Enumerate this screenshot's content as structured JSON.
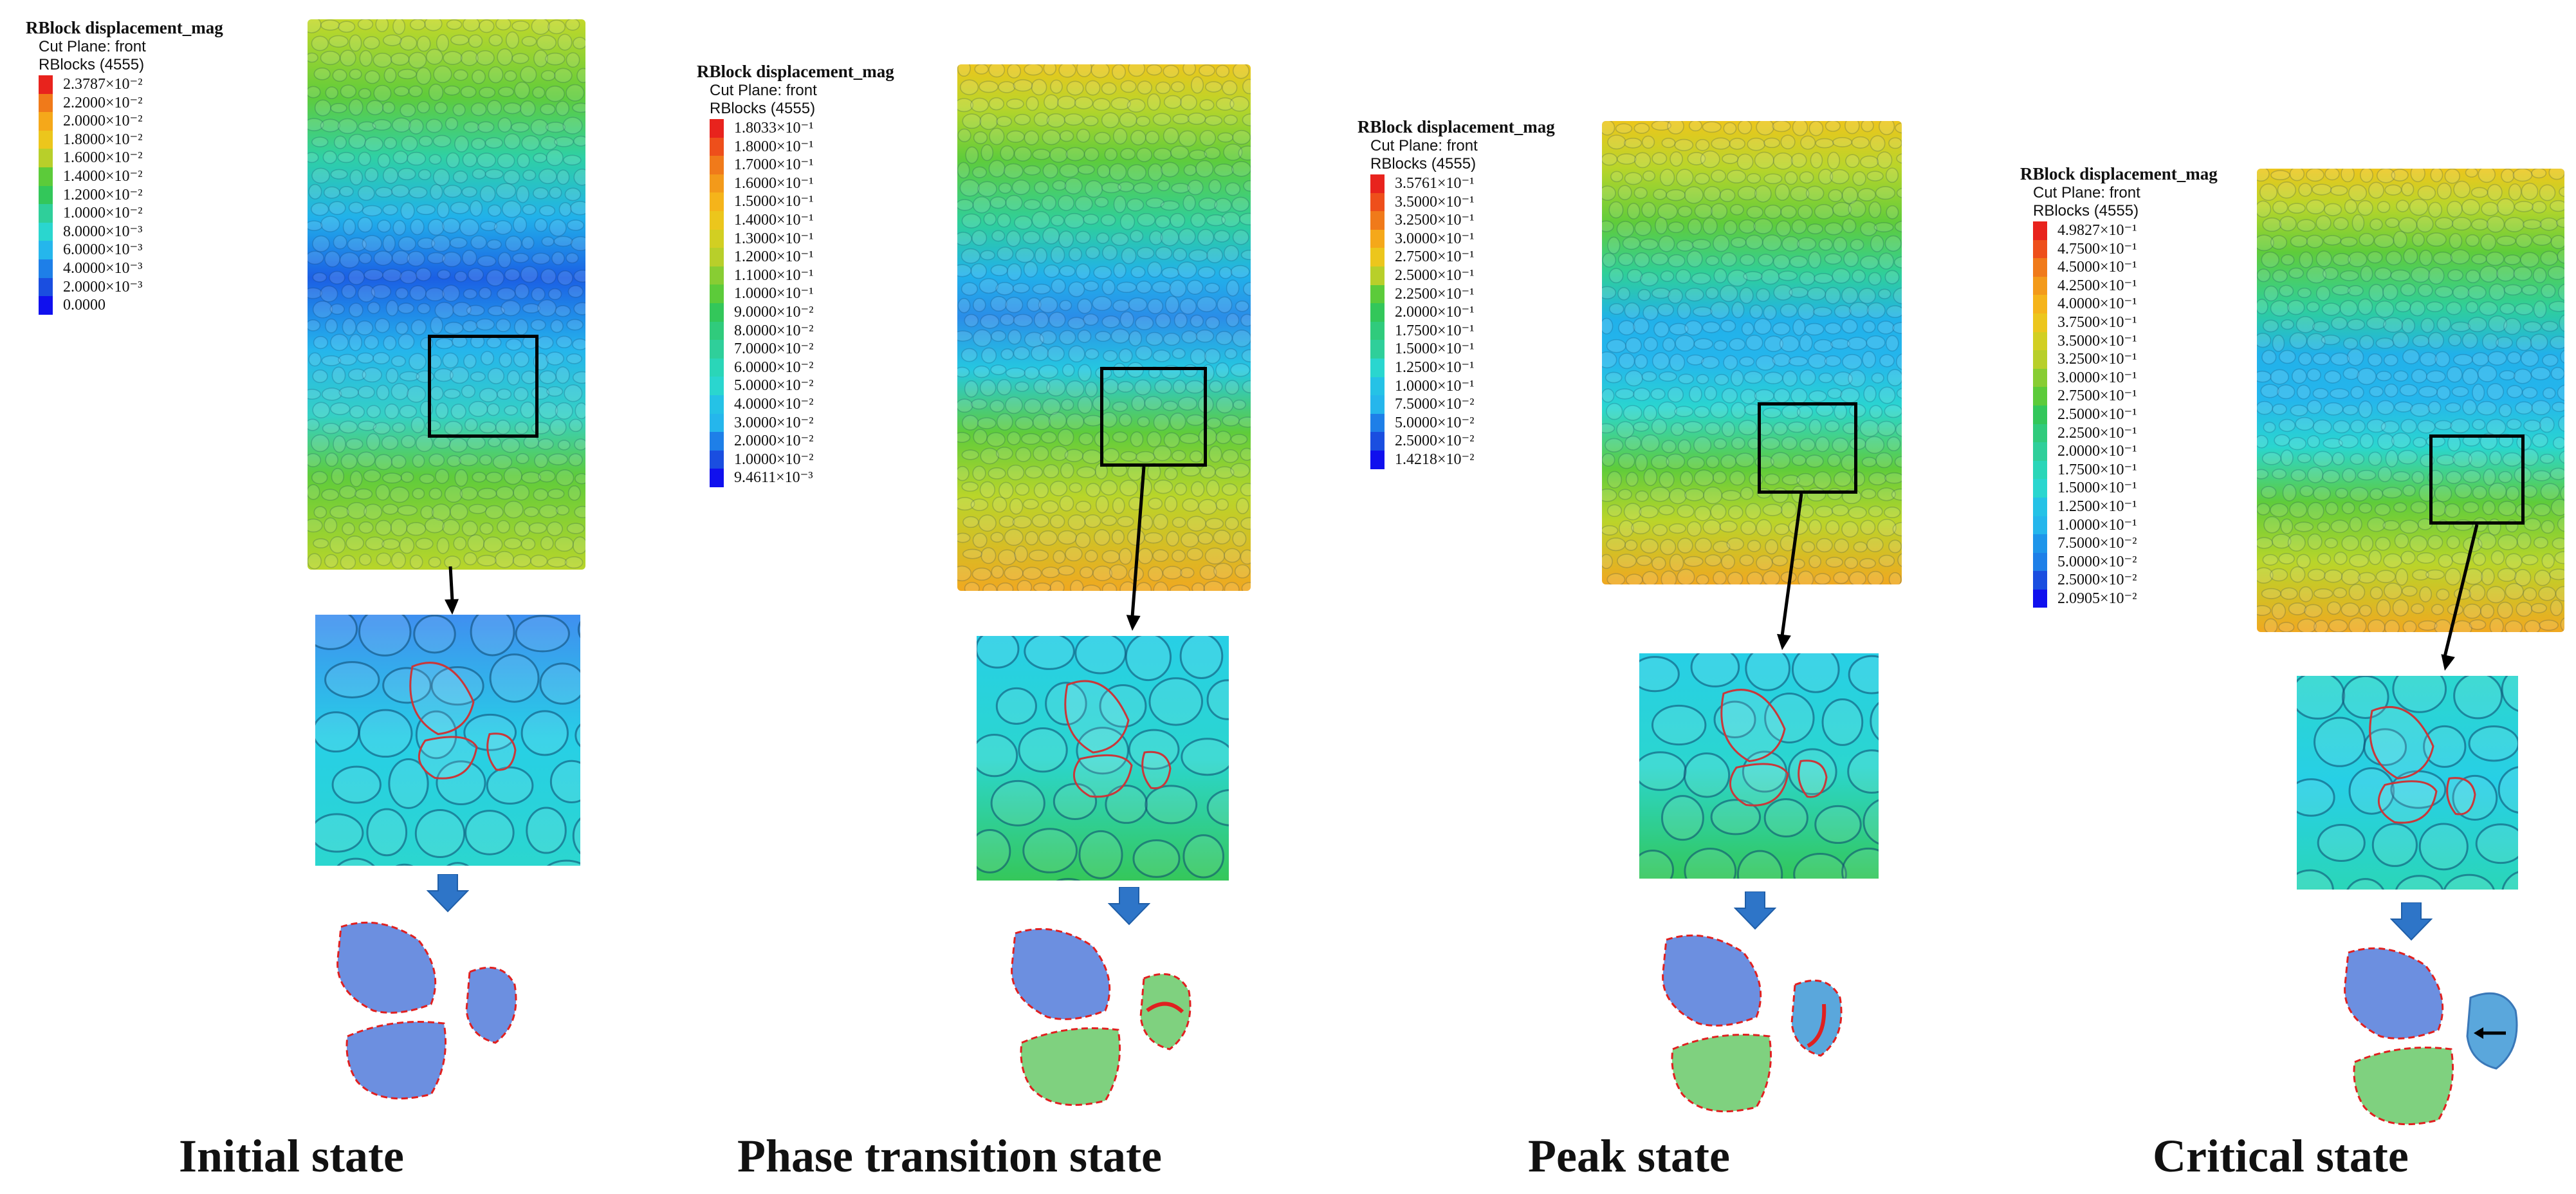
{
  "panels": [
    {
      "id": "initial",
      "legend": {
        "title": "RBlock displacement_mag",
        "cut_plane": "Cut Plane: front",
        "rblocks": "RBlocks (4555)",
        "ticks": [
          "2.3787×10⁻²",
          "2.2000×10⁻²",
          "2.0000×10⁻²",
          "1.8000×10⁻²",
          "1.6000×10⁻²",
          "1.4000×10⁻²",
          "1.2000×10⁻²",
          "1.0000×10⁻²",
          "8.0000×10⁻³",
          "6.0000×10⁻³",
          "4.0000×10⁻³",
          "2.0000×10⁻³",
          "0.0000"
        ],
        "colors": [
          "#e8231d",
          "#f07a1a",
          "#f5a81a",
          "#ecc61c",
          "#b8cf2a",
          "#5ccb3a",
          "#33c75a",
          "#2fcf9a",
          "#2ad6cf",
          "#25b6ec",
          "#1e7fe8",
          "#1a4ee0",
          "#1010ee"
        ]
      },
      "label": "Initial state",
      "motion_marker": "none"
    },
    {
      "id": "phase-transition",
      "legend": {
        "title": "RBlock displacement_mag",
        "cut_plane": "Cut Plane: front",
        "rblocks": "RBlocks (4555)",
        "ticks": [
          "1.8033×10⁻¹",
          "1.8000×10⁻¹",
          "1.7000×10⁻¹",
          "1.6000×10⁻¹",
          "1.5000×10⁻¹",
          "1.4000×10⁻¹",
          "1.3000×10⁻¹",
          "1.2000×10⁻¹",
          "1.1000×10⁻¹",
          "1.0000×10⁻¹",
          "9.0000×10⁻²",
          "8.0000×10⁻²",
          "7.0000×10⁻²",
          "6.0000×10⁻²",
          "5.0000×10⁻²",
          "4.0000×10⁻²",
          "3.0000×10⁻²",
          "2.0000×10⁻²",
          "1.0000×10⁻²",
          "9.4611×10⁻³"
        ],
        "colors": [
          "#e8231d",
          "#ee4f1b",
          "#f07a1a",
          "#f39a1a",
          "#f5b41a",
          "#ecc61c",
          "#d2cf22",
          "#b8cf2a",
          "#88cd33",
          "#5ccb3a",
          "#33c75a",
          "#30cb7c",
          "#2fcf9a",
          "#2ad6b8",
          "#2ad6cf",
          "#25c2e6",
          "#25b6ec",
          "#1e7fe8",
          "#1a4ee0",
          "#1010ee"
        ]
      },
      "label": "Phase transition state",
      "motion_marker": "rotation-arc"
    },
    {
      "id": "peak",
      "legend": {
        "title": "RBlock displacement_mag",
        "cut_plane": "Cut Plane: front",
        "rblocks": "RBlocks (4555)",
        "ticks": [
          "3.5761×10⁻¹",
          "3.5000×10⁻¹",
          "3.2500×10⁻¹",
          "3.0000×10⁻¹",
          "2.7500×10⁻¹",
          "2.5000×10⁻¹",
          "2.2500×10⁻¹",
          "2.0000×10⁻¹",
          "1.7500×10⁻¹",
          "1.5000×10⁻¹",
          "1.2500×10⁻¹",
          "1.0000×10⁻¹",
          "7.5000×10⁻²",
          "5.0000×10⁻²",
          "2.5000×10⁻²",
          "1.4218×10⁻²"
        ],
        "colors": [
          "#e8231d",
          "#ee4f1b",
          "#f07a1a",
          "#f5a81a",
          "#ecc61c",
          "#b8cf2a",
          "#5ccb3a",
          "#33c75a",
          "#30cb7c",
          "#2fcf9a",
          "#2ad6cf",
          "#25c2e6",
          "#25b6ec",
          "#1e7fe8",
          "#1a4ee0",
          "#1010ee"
        ]
      },
      "label": "Peak state",
      "motion_marker": "rotation-curve"
    },
    {
      "id": "critical",
      "legend": {
        "title": "RBlock displacement_mag",
        "cut_plane": "Cut Plane: front",
        "rblocks": "RBlocks (4555)",
        "ticks": [
          "4.9827×10⁻¹",
          "4.7500×10⁻¹",
          "4.5000×10⁻¹",
          "4.2500×10⁻¹",
          "4.0000×10⁻¹",
          "3.7500×10⁻¹",
          "3.5000×10⁻¹",
          "3.2500×10⁻¹",
          "3.0000×10⁻¹",
          "2.7500×10⁻¹",
          "2.5000×10⁻¹",
          "2.2500×10⁻¹",
          "2.0000×10⁻¹",
          "1.7500×10⁻¹",
          "1.5000×10⁻¹",
          "1.2500×10⁻¹",
          "1.0000×10⁻¹",
          "7.5000×10⁻²",
          "5.0000×10⁻²",
          "2.5000×10⁻²",
          "2.0905×10⁻²"
        ],
        "colors": [
          "#e8231d",
          "#ee4f1b",
          "#f07a1a",
          "#f39a1a",
          "#f5b41a",
          "#ecc61c",
          "#d2cf22",
          "#b8cf2a",
          "#88cd33",
          "#5ccb3a",
          "#33c75a",
          "#30cb7c",
          "#2fcf9a",
          "#2ad6b8",
          "#2ad6cf",
          "#25c2e6",
          "#25b6ec",
          "#1e95ea",
          "#1e7fe8",
          "#1a4ee0",
          "#1010ee"
        ]
      },
      "label": "Critical state",
      "motion_marker": "left-arrow"
    }
  ]
}
